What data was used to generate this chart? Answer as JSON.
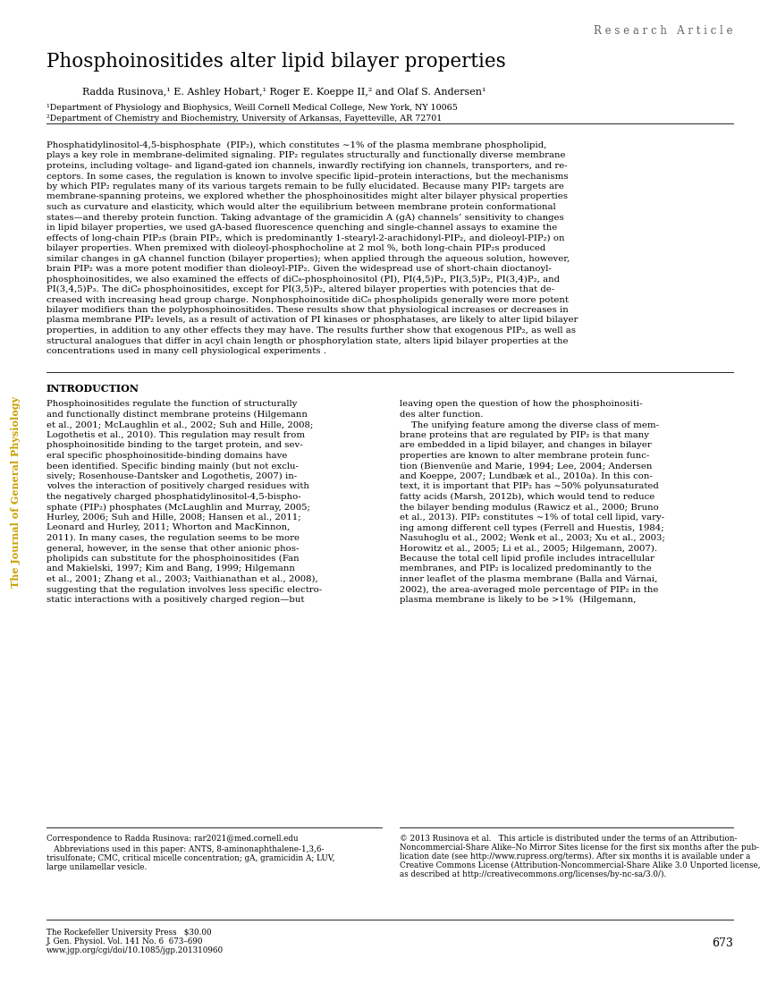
{
  "background_color": "#ffffff",
  "page_width": 8.5,
  "page_height": 11.0,
  "dpi": 100,
  "header_right": "R e s e a r c h   A r t i c l e",
  "title": "Phosphoinositides alter lipid bilayer properties",
  "authors": "Radda Rusinova,¹ E. Ashley Hobart,¹ Roger E. Koeppe II,² and Olaf S. Andersen¹",
  "affil1": "¹Department of Physiology and Biophysics, Weill Cornell Medical College, New York, NY 10065",
  "affil2": "²Department of Chemistry and Biochemistry, University of Arkansas, Fayetteville, AR 72701",
  "abstract_lines": [
    "Phosphatidylinositol-4,5-bisphosphate  (PIP₂), which constitutes ∼1% of the plasma membrane phospholipid,",
    "plays a key role in membrane-delimited signaling. PIP₂ regulates structurally and functionally diverse membrane",
    "proteins, including voltage- and ligand-gated ion channels, inwardly rectifying ion channels, transporters, and re-",
    "ceptors. In some cases, the regulation is known to involve specific lipid–protein interactions, but the mechanisms",
    "by which PIP₂ regulates many of its various targets remain to be fully elucidated. Because many PIP₂ targets are",
    "membrane-spanning proteins, we explored whether the phosphoinositides might alter bilayer physical properties",
    "such as curvature and elasticity, which would alter the equilibrium between membrane protein conformational",
    "states—and thereby protein function. Taking advantage of the gramicidin A (gA) channels’ sensitivity to changes",
    "in lipid bilayer properties, we used gA-based fluorescence quenching and single-channel assays to examine the",
    "effects of long-chain PIP₂s (brain PIP₂, which is predominantly 1-stearyl-2-arachidonyl-PIP₂, and dioleoyl-PIP₂) on",
    "bilayer properties. When premixed with dioleoyl-phosphocholine at 2 mol %, both long-chain PIP₂s produced",
    "similar changes in gA channel function (bilayer properties); when applied through the aqueous solution, however,",
    "brain PIP₂ was a more potent modifier than dioleoyl-PIP₂. Given the widespread use of short-chain dioctanoyl-",
    "phosphoinositides, we also examined the effects of diC₈-phosphoinositol (PI), PI(4,5)P₂, PI(3,5)P₂, PI(3,4)P₂, and",
    "PI(3,4,5)P₃. The diC₈ phosphoinositides, except for PI(3,5)P₂, altered bilayer properties with potencies that de-",
    "creased with increasing head group charge. Nonphosphoinositide diC₈ phospholipids generally were more potent",
    "bilayer modifiers than the polyphosphoinositides. These results show that physiological increases or decreases in",
    "plasma membrane PIP₂ levels, as a result of activation of PI kinases or phosphatases, are likely to alter lipid bilayer",
    "properties, in addition to any other effects they may have. The results further show that exogenous PIP₂, as well as",
    "structural analogues that differ in acyl chain length or phosphorylation state, alters lipid bilayer properties at the",
    "concentrations used in many cell physiological experiments ."
  ],
  "intro_heading": "INTRODUCTION",
  "intro_left_lines": [
    "Phosphoinositides regulate the function of structurally",
    "and functionally distinct membrane proteins (Hilgemann",
    "et al., 2001; McLaughlin et al., 2002; Suh and Hille, 2008;",
    "Logothetis et al., 2010). This regulation may result from",
    "phosphoinositide binding to the target protein, and sev-",
    "eral specific phosphoinositide-binding domains have",
    "been identified. Specific binding mainly (but not exclu-",
    "sively; Rosenhouse-Dantsker and Logothetis, 2007) in-",
    "volves the interaction of positively charged residues with",
    "the negatively charged phosphatidylinositol-4,5-bispho-",
    "sphate (PIP₂) phosphates (McLaughlin and Murray, 2005;",
    "Hurley, 2006; Suh and Hille, 2008; Hansen et al., 2011;",
    "Leonard and Hurley, 2011; Whorton and MacKinnon,",
    "2011). In many cases, the regulation seems to be more",
    "general, however, in the sense that other anionic phos-",
    "pholipids can substitute for the phosphoinositides (Fan",
    "and Makielski, 1997; Kim and Bang, 1999; Hilgemann",
    "et al., 2001; Zhang et al., 2003; Vaithianathan et al., 2008),",
    "suggesting that the regulation involves less specific electro-",
    "static interactions with a positively charged region—but"
  ],
  "intro_right_lines": [
    "leaving open the question of how the phosphoinositi-",
    "des alter function.",
    "    The unifying feature among the diverse class of mem-",
    "brane proteins that are regulated by PIP₂ is that many",
    "are embedded in a lipid bilayer, and changes in bilayer",
    "properties are known to alter membrane protein func-",
    "tion (Bienvenüe and Marie, 1994; Lee, 2004; Andersen",
    "and Koeppe, 2007; Lundbæk et al., 2010a). In this con-",
    "text, it is important that PIP₂ has ∼50% polyunsaturated",
    "fatty acids (Marsh, 2012b), which would tend to reduce",
    "the bilayer bending modulus (Rawicz et al., 2000; Bruno",
    "et al., 2013). PIP₂ constitutes ∼1% of total cell lipid, vary-",
    "ing among different cell types (Ferrell and Huestis, 1984;",
    "Nasuhoglu et al., 2002; Wenk et al., 2003; Xu et al., 2003;",
    "Horowitz et al., 2005; Li et al., 2005; Hilgemann, 2007).",
    "Because the total cell lipid profile includes intracellular",
    "membranes, and PIP₂ is localized predominantly to the",
    "inner leaflet of the plasma membrane (Balla and Várnai,",
    "2002), the area-averaged mole percentage of PIP₂ in the",
    "plasma membrane is likely to be >1%  (Hilgemann,"
  ],
  "footnote_left_corr": "Correspondence to Radda Rusinova: rar2021@med.cornell.edu",
  "footnote_left_abbr_lines": [
    "   Abbreviations used in this paper: ANTS, 8-aminonaphthalene-1,3,6-",
    "trisulfonate; CMC, critical micelle concentration; gA, gramicidin A; LUV,",
    "large unilamellar vesicle."
  ],
  "footnote_right_lines": [
    "© 2013 Rusinova et al.   This article is distributed under the terms of an Attribution-",
    "Noncommercial-Share Alike–No Mirror Sites license for the first six months after the pub-",
    "lication date (see http://www.rupress.org/terms). After six months it is available under a",
    "Creative Commons License (Attribution-Noncommercial-Share Alike 3.0 Unported license,",
    "as described at http://creativecommons.org/licenses/by-nc-sa/3.0/)."
  ],
  "footer_left1": "The Rockefeller University Press   $30.00",
  "footer_left2": "J. Gen. Physiol. Vol. 141 No. 6  673–690",
  "footer_left3": "www.jgp.org/cgi/doi/10.1085/jgp.201310960",
  "footer_page": "673",
  "sidebar_text": "The Journal of General Physiology",
  "sidebar_color": "#c8a000"
}
